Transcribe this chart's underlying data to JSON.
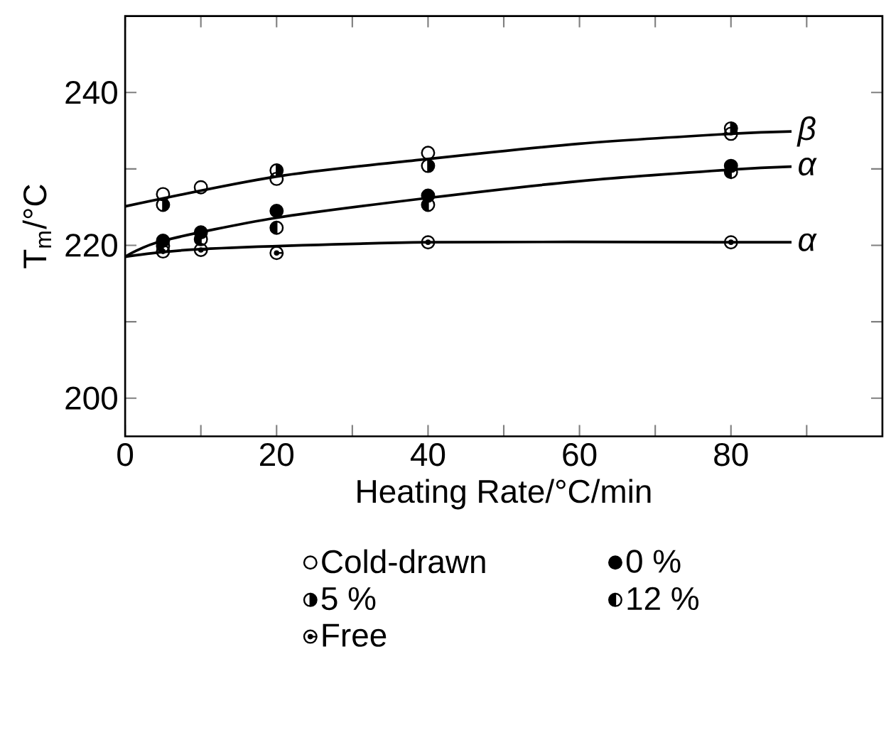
{
  "chart_data": {
    "type": "scatter",
    "xlabel": "Heating Rate/°C/min",
    "ylabel": "T$_{m}$/°C",
    "xlim": [
      0,
      100
    ],
    "ylim": [
      195,
      250
    ],
    "xticks": [
      0,
      {
        "value": 10,
        "label": null
      },
      20,
      {
        "value": 30,
        "label": null
      },
      40,
      {
        "value": 50,
        "label": null
      },
      60,
      {
        "value": 70,
        "label": null
      },
      80,
      {
        "value": 90,
        "label": null
      }
    ],
    "yticks": [
      200,
      {
        "value": 210,
        "label": null
      },
      220,
      {
        "value": 230,
        "label": null
      },
      240
    ],
    "legend": "bottom",
    "grid": false,
    "marker": "circle",
    "series": [
      {
        "name": "Cold-drawn",
        "color": "#000000",
        "x": [
          5,
          10,
          20,
          40,
          80
        ],
        "values": [
          226.7,
          227.6,
          228.7,
          232.1,
          234.6
        ]
      },
      {
        "name": "0 %",
        "color": "#000000",
        "x": [
          5,
          10,
          20,
          40,
          80
        ],
        "values": [
          220.6,
          221.7,
          224.5,
          226.5,
          230.4
        ]
      },
      {
        "name": "5 %",
        "color": "#000000",
        "x": [
          5,
          20,
          40,
          80
        ],
        "values": [
          225.3,
          229.8,
          230.4,
          235.3
        ]
      },
      {
        "name": "12 %",
        "color": "#000000",
        "x": [
          5,
          10,
          20,
          40,
          80
        ],
        "values": [
          219.9,
          220.8,
          222.3,
          225.3,
          229.6
        ]
      },
      {
        "name": "Free",
        "color": "#000000",
        "x": [
          5,
          10,
          20,
          40,
          80
        ],
        "values": [
          219.2,
          219.4,
          219.0,
          220.4,
          220.4
        ]
      },
      {
        "name": "β",
        "type": "line",
        "color": "#000000",
        "marker": "none",
        "x": [
          0,
          20,
          40,
          60,
          80,
          88
        ],
        "values": [
          225.1,
          229.0,
          231.3,
          233.3,
          234.6,
          234.9
        ]
      },
      {
        "name": "α",
        "type": "line",
        "color": "#000000",
        "marker": "none",
        "x": [
          0,
          5,
          20,
          40,
          60,
          80,
          88
        ],
        "values": [
          218.5,
          220.6,
          223.6,
          226.2,
          228.4,
          229.9,
          230.3
        ]
      },
      {
        "name": "α",
        "type": "line",
        "color": "#000000",
        "marker": "none",
        "x": [
          0,
          10,
          40,
          80,
          88
        ],
        "values": [
          218.5,
          219.5,
          220.4,
          220.4,
          220.4
        ]
      }
    ]
  }
}
